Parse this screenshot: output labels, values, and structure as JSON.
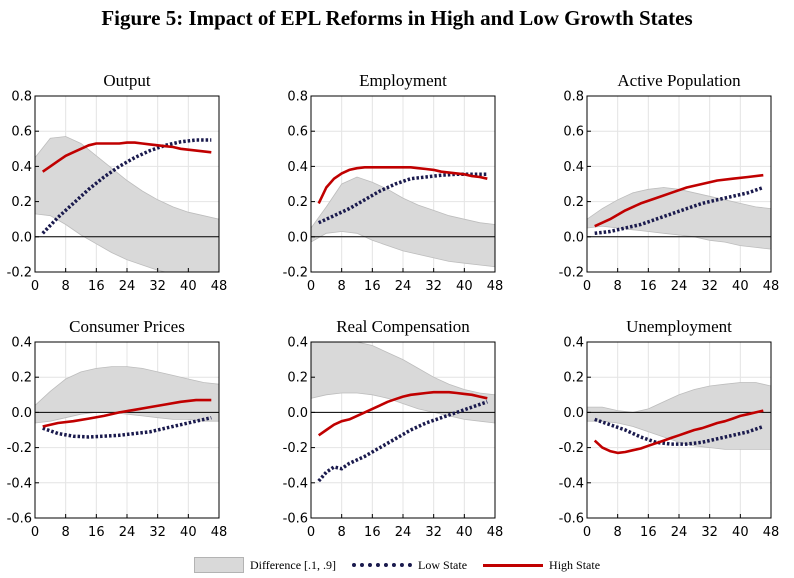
{
  "figure_title": "Figure 5: Impact of EPL Reforms in High and Low Growth States",
  "legend": {
    "band_label": "Difference [.1, .9]",
    "low_label": "Low State",
    "high_label": "High State"
  },
  "colors": {
    "band": "#d9d9d9",
    "band_edge": "#bdbdbd",
    "low": "#1a1a4d",
    "high": "#c00000"
  },
  "chart_data": [
    {
      "type": "line",
      "title": "Output",
      "x_ticks": [
        0,
        8,
        16,
        24,
        32,
        40,
        48
      ],
      "y_ticks": [
        -0.2,
        0.0,
        0.2,
        0.4,
        0.6,
        0.8
      ],
      "y_tick_labels": [
        "-0.2",
        "0.0",
        "0.2",
        "0.4",
        "0.6",
        "0.8"
      ],
      "xlim": [
        0,
        48
      ],
      "ylim": [
        -0.2,
        0.8
      ],
      "band_x": [
        0,
        4,
        8,
        12,
        16,
        20,
        24,
        28,
        32,
        36,
        40,
        44,
        48
      ],
      "band_lower": [
        0.13,
        0.12,
        0.07,
        0.01,
        -0.04,
        -0.09,
        -0.13,
        -0.16,
        -0.19,
        -0.21,
        -0.22,
        -0.23,
        -0.23
      ],
      "band_upper": [
        0.45,
        0.56,
        0.57,
        0.53,
        0.46,
        0.39,
        0.32,
        0.26,
        0.21,
        0.17,
        0.14,
        0.12,
        0.1
      ],
      "series": [
        {
          "name": "Low State",
          "x": [
            2,
            6,
            10,
            14,
            18,
            22,
            26,
            30,
            34,
            38,
            42,
            46
          ],
          "y": [
            0.02,
            0.11,
            0.19,
            0.27,
            0.34,
            0.4,
            0.45,
            0.49,
            0.52,
            0.54,
            0.55,
            0.55
          ]
        },
        {
          "name": "High State",
          "x": [
            2,
            4,
            6,
            8,
            10,
            12,
            14,
            16,
            18,
            20,
            22,
            24,
            26,
            28,
            30,
            32,
            34,
            36,
            38,
            40,
            42,
            44,
            46
          ],
          "y": [
            0.37,
            0.4,
            0.43,
            0.46,
            0.48,
            0.5,
            0.52,
            0.53,
            0.53,
            0.53,
            0.53,
            0.535,
            0.535,
            0.53,
            0.525,
            0.52,
            0.515,
            0.51,
            0.5,
            0.495,
            0.49,
            0.485,
            0.48
          ]
        }
      ]
    },
    {
      "type": "line",
      "title": "Employment",
      "x_ticks": [
        0,
        8,
        16,
        24,
        32,
        40,
        48
      ],
      "y_ticks": [
        -0.2,
        0.0,
        0.2,
        0.4,
        0.6,
        0.8
      ],
      "y_tick_labels": [
        "-0.2",
        "0.0",
        "0.2",
        "0.4",
        "0.6",
        "0.8"
      ],
      "xlim": [
        0,
        48
      ],
      "ylim": [
        -0.2,
        0.8
      ],
      "band_x": [
        0,
        4,
        8,
        12,
        16,
        20,
        24,
        28,
        32,
        36,
        40,
        44,
        48
      ],
      "band_lower": [
        -0.03,
        0.02,
        0.03,
        0.02,
        -0.02,
        -0.05,
        -0.08,
        -0.1,
        -0.12,
        -0.14,
        -0.15,
        -0.16,
        -0.17
      ],
      "band_upper": [
        0.05,
        0.17,
        0.3,
        0.34,
        0.31,
        0.27,
        0.22,
        0.18,
        0.15,
        0.12,
        0.1,
        0.08,
        0.07
      ],
      "series": [
        {
          "name": "Low State",
          "x": [
            2,
            6,
            10,
            14,
            18,
            22,
            26,
            30,
            34,
            38,
            42,
            46
          ],
          "y": [
            0.08,
            0.12,
            0.16,
            0.21,
            0.26,
            0.3,
            0.33,
            0.34,
            0.35,
            0.355,
            0.355,
            0.355
          ]
        },
        {
          "name": "High State",
          "x": [
            2,
            4,
            6,
            8,
            10,
            12,
            14,
            16,
            18,
            20,
            22,
            24,
            26,
            28,
            30,
            32,
            34,
            36,
            38,
            40,
            42,
            44,
            46
          ],
          "y": [
            0.19,
            0.28,
            0.33,
            0.36,
            0.38,
            0.39,
            0.395,
            0.395,
            0.395,
            0.395,
            0.395,
            0.395,
            0.395,
            0.39,
            0.385,
            0.38,
            0.37,
            0.365,
            0.36,
            0.355,
            0.345,
            0.34,
            0.33
          ]
        }
      ]
    },
    {
      "type": "line",
      "title": "Active Population",
      "x_ticks": [
        0,
        8,
        16,
        24,
        32,
        40,
        48
      ],
      "y_ticks": [
        -0.2,
        0.0,
        0.2,
        0.4,
        0.6,
        0.8
      ],
      "y_tick_labels": [
        "-0.2",
        "0.0",
        "0.2",
        "0.4",
        "0.6",
        "0.8"
      ],
      "xlim": [
        0,
        48
      ],
      "ylim": [
        -0.2,
        0.8
      ],
      "band_x": [
        0,
        4,
        8,
        12,
        16,
        20,
        24,
        28,
        32,
        36,
        40,
        44,
        48
      ],
      "band_lower": [
        0.05,
        0.06,
        0.05,
        0.04,
        0.03,
        0.02,
        0.01,
        0.0,
        -0.02,
        -0.03,
        -0.05,
        -0.06,
        -0.07
      ],
      "band_upper": [
        0.1,
        0.16,
        0.21,
        0.25,
        0.27,
        0.28,
        0.27,
        0.25,
        0.23,
        0.21,
        0.19,
        0.17,
        0.16
      ],
      "series": [
        {
          "name": "Low State",
          "x": [
            2,
            6,
            10,
            14,
            18,
            22,
            26,
            30,
            34,
            38,
            42,
            46
          ],
          "y": [
            0.02,
            0.03,
            0.05,
            0.07,
            0.1,
            0.13,
            0.16,
            0.19,
            0.21,
            0.23,
            0.25,
            0.28
          ]
        },
        {
          "name": "High State",
          "x": [
            2,
            6,
            10,
            14,
            18,
            22,
            26,
            30,
            34,
            38,
            42,
            46
          ],
          "y": [
            0.06,
            0.1,
            0.15,
            0.19,
            0.22,
            0.25,
            0.28,
            0.3,
            0.32,
            0.33,
            0.34,
            0.35
          ]
        }
      ]
    },
    {
      "type": "line",
      "title": "Consumer Prices",
      "x_ticks": [
        0,
        8,
        16,
        24,
        32,
        40,
        48
      ],
      "y_ticks": [
        -0.6,
        -0.4,
        -0.2,
        0.0,
        0.2,
        0.4
      ],
      "y_tick_labels": [
        "-0.6",
        "-0.4",
        "-0.2",
        "0.0",
        "0.2",
        "0.4"
      ],
      "xlim": [
        0,
        48
      ],
      "ylim": [
        -0.6,
        0.4
      ],
      "band_x": [
        0,
        4,
        8,
        12,
        16,
        20,
        24,
        28,
        32,
        36,
        40,
        44,
        48
      ],
      "band_lower": [
        -0.06,
        -0.05,
        -0.03,
        -0.01,
        0.0,
        0.0,
        -0.01,
        -0.02,
        -0.03,
        -0.04,
        -0.04,
        -0.05,
        -0.05
      ],
      "band_upper": [
        0.04,
        0.12,
        0.19,
        0.23,
        0.25,
        0.26,
        0.26,
        0.25,
        0.23,
        0.21,
        0.19,
        0.17,
        0.16
      ],
      "series": [
        {
          "name": "Low State",
          "x": [
            2,
            6,
            10,
            14,
            18,
            22,
            26,
            30,
            34,
            38,
            42,
            46
          ],
          "y": [
            -0.09,
            -0.12,
            -0.135,
            -0.14,
            -0.135,
            -0.13,
            -0.12,
            -0.11,
            -0.09,
            -0.07,
            -0.05,
            -0.03
          ]
        },
        {
          "name": "High State",
          "x": [
            2,
            6,
            10,
            14,
            18,
            22,
            26,
            30,
            34,
            38,
            42,
            46
          ],
          "y": [
            -0.08,
            -0.06,
            -0.05,
            -0.035,
            -0.02,
            0.0,
            0.015,
            0.03,
            0.045,
            0.06,
            0.07,
            0.07
          ]
        }
      ]
    },
    {
      "type": "line",
      "title": "Real Compensation",
      "x_ticks": [
        0,
        8,
        16,
        24,
        32,
        40,
        48
      ],
      "y_ticks": [
        -0.6,
        -0.4,
        -0.2,
        0.0,
        0.2,
        0.4
      ],
      "y_tick_labels": [
        "-0.6",
        "-0.4",
        "-0.2",
        "0.0",
        "0.2",
        "0.4"
      ],
      "xlim": [
        0,
        48
      ],
      "ylim": [
        -0.6,
        0.4
      ],
      "band_x": [
        0,
        4,
        8,
        12,
        16,
        20,
        24,
        28,
        32,
        36,
        40,
        44,
        48
      ],
      "band_lower": [
        0.08,
        0.1,
        0.11,
        0.11,
        0.1,
        0.08,
        0.05,
        0.02,
        0.0,
        -0.02,
        -0.04,
        -0.05,
        -0.06
      ],
      "band_upper": [
        0.4,
        0.4,
        0.4,
        0.4,
        0.38,
        0.34,
        0.3,
        0.25,
        0.2,
        0.16,
        0.13,
        0.11,
        0.1
      ],
      "series": [
        {
          "name": "Low State",
          "x": [
            2,
            4,
            6,
            8,
            10,
            14,
            18,
            22,
            26,
            30,
            34,
            38,
            42,
            46
          ],
          "y": [
            -0.39,
            -0.34,
            -0.31,
            -0.32,
            -0.29,
            -0.25,
            -0.2,
            -0.15,
            -0.1,
            -0.06,
            -0.03,
            0.0,
            0.03,
            0.06
          ]
        },
        {
          "name": "High State",
          "x": [
            2,
            4,
            6,
            8,
            10,
            12,
            14,
            16,
            18,
            20,
            22,
            24,
            26,
            28,
            30,
            32,
            34,
            36,
            38,
            40,
            42,
            44,
            46
          ],
          "y": [
            -0.13,
            -0.1,
            -0.07,
            -0.05,
            -0.04,
            -0.02,
            0.0,
            0.02,
            0.04,
            0.06,
            0.075,
            0.09,
            0.1,
            0.105,
            0.11,
            0.115,
            0.115,
            0.115,
            0.11,
            0.105,
            0.1,
            0.09,
            0.08
          ]
        }
      ]
    },
    {
      "type": "line",
      "title": "Unemployment",
      "x_ticks": [
        0,
        8,
        16,
        24,
        32,
        40,
        48
      ],
      "y_ticks": [
        -0.6,
        -0.4,
        -0.2,
        0.0,
        0.2,
        0.4
      ],
      "y_tick_labels": [
        "-0.6",
        "-0.4",
        "-0.2",
        "0.0",
        "0.2",
        "0.4"
      ],
      "xlim": [
        0,
        48
      ],
      "ylim": [
        -0.6,
        0.4
      ],
      "band_x": [
        0,
        4,
        8,
        12,
        16,
        20,
        24,
        28,
        32,
        36,
        40,
        44,
        48
      ],
      "band_lower": [
        -0.05,
        -0.05,
        -0.06,
        -0.08,
        -0.11,
        -0.14,
        -0.17,
        -0.19,
        -0.2,
        -0.21,
        -0.21,
        -0.21,
        -0.21
      ],
      "band_upper": [
        0.03,
        0.03,
        0.01,
        0.0,
        0.02,
        0.06,
        0.1,
        0.13,
        0.15,
        0.16,
        0.17,
        0.17,
        0.15
      ],
      "series": [
        {
          "name": "Low State",
          "x": [
            2,
            6,
            10,
            14,
            18,
            22,
            26,
            30,
            34,
            38,
            42,
            46
          ],
          "y": [
            -0.04,
            -0.07,
            -0.1,
            -0.14,
            -0.17,
            -0.18,
            -0.18,
            -0.17,
            -0.15,
            -0.13,
            -0.11,
            -0.08
          ]
        },
        {
          "name": "High State",
          "x": [
            2,
            4,
            6,
            8,
            10,
            12,
            14,
            16,
            18,
            20,
            22,
            24,
            26,
            28,
            30,
            32,
            34,
            36,
            38,
            40,
            42,
            44,
            46
          ],
          "y": [
            -0.16,
            -0.2,
            -0.22,
            -0.23,
            -0.225,
            -0.215,
            -0.205,
            -0.19,
            -0.175,
            -0.16,
            -0.145,
            -0.13,
            -0.115,
            -0.1,
            -0.09,
            -0.075,
            -0.06,
            -0.05,
            -0.035,
            -0.02,
            -0.01,
            0.0,
            0.01
          ]
        }
      ]
    }
  ]
}
